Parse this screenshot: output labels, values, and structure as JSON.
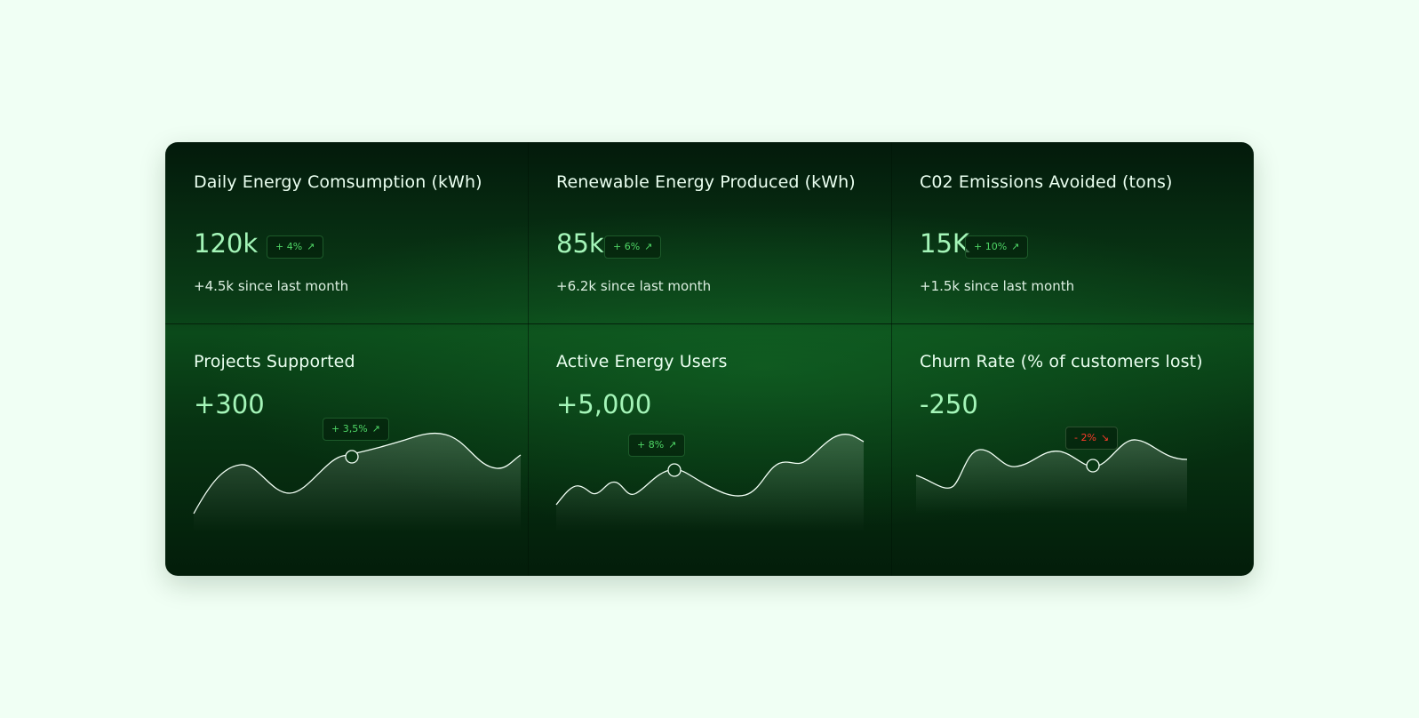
{
  "colors": {
    "page_bg": "#f0fff4",
    "value_green": "#a4f5b8",
    "positive": "#4fd666",
    "negative": "#ff3a2a"
  },
  "kpis": [
    {
      "title": "Daily Energy Comsumption (kWh)",
      "value": "120k",
      "badge": "+ 4%",
      "badge_icon": "arrow-up-right-icon",
      "delta": "+4.5k since last month"
    },
    {
      "title": "Renewable Energy Produced (kWh)",
      "value": "85k",
      "badge": "+ 6%",
      "badge_icon": "arrow-up-right-icon",
      "delta": "+6.2k since last month"
    },
    {
      "title": "C02 Emissions Avoided (tons)",
      "value": "15K",
      "badge": "+ 10%",
      "badge_icon": "arrow-up-right-icon",
      "delta": "+1.5k since last month"
    }
  ],
  "trends": [
    {
      "title": "Projects Supported",
      "value": "+300",
      "badge": "+ 3,5%",
      "badge_icon": "arrow-up-right-icon",
      "direction": "up"
    },
    {
      "title": "Active Energy Users",
      "value": "+5,000",
      "badge": "+ 8%",
      "badge_icon": "arrow-up-right-icon",
      "direction": "up"
    },
    {
      "title": "Churn Rate (% of customers lost)",
      "value": "-250",
      "badge": "- 2%",
      "badge_icon": "arrow-down-right-icon",
      "direction": "down"
    }
  ]
}
